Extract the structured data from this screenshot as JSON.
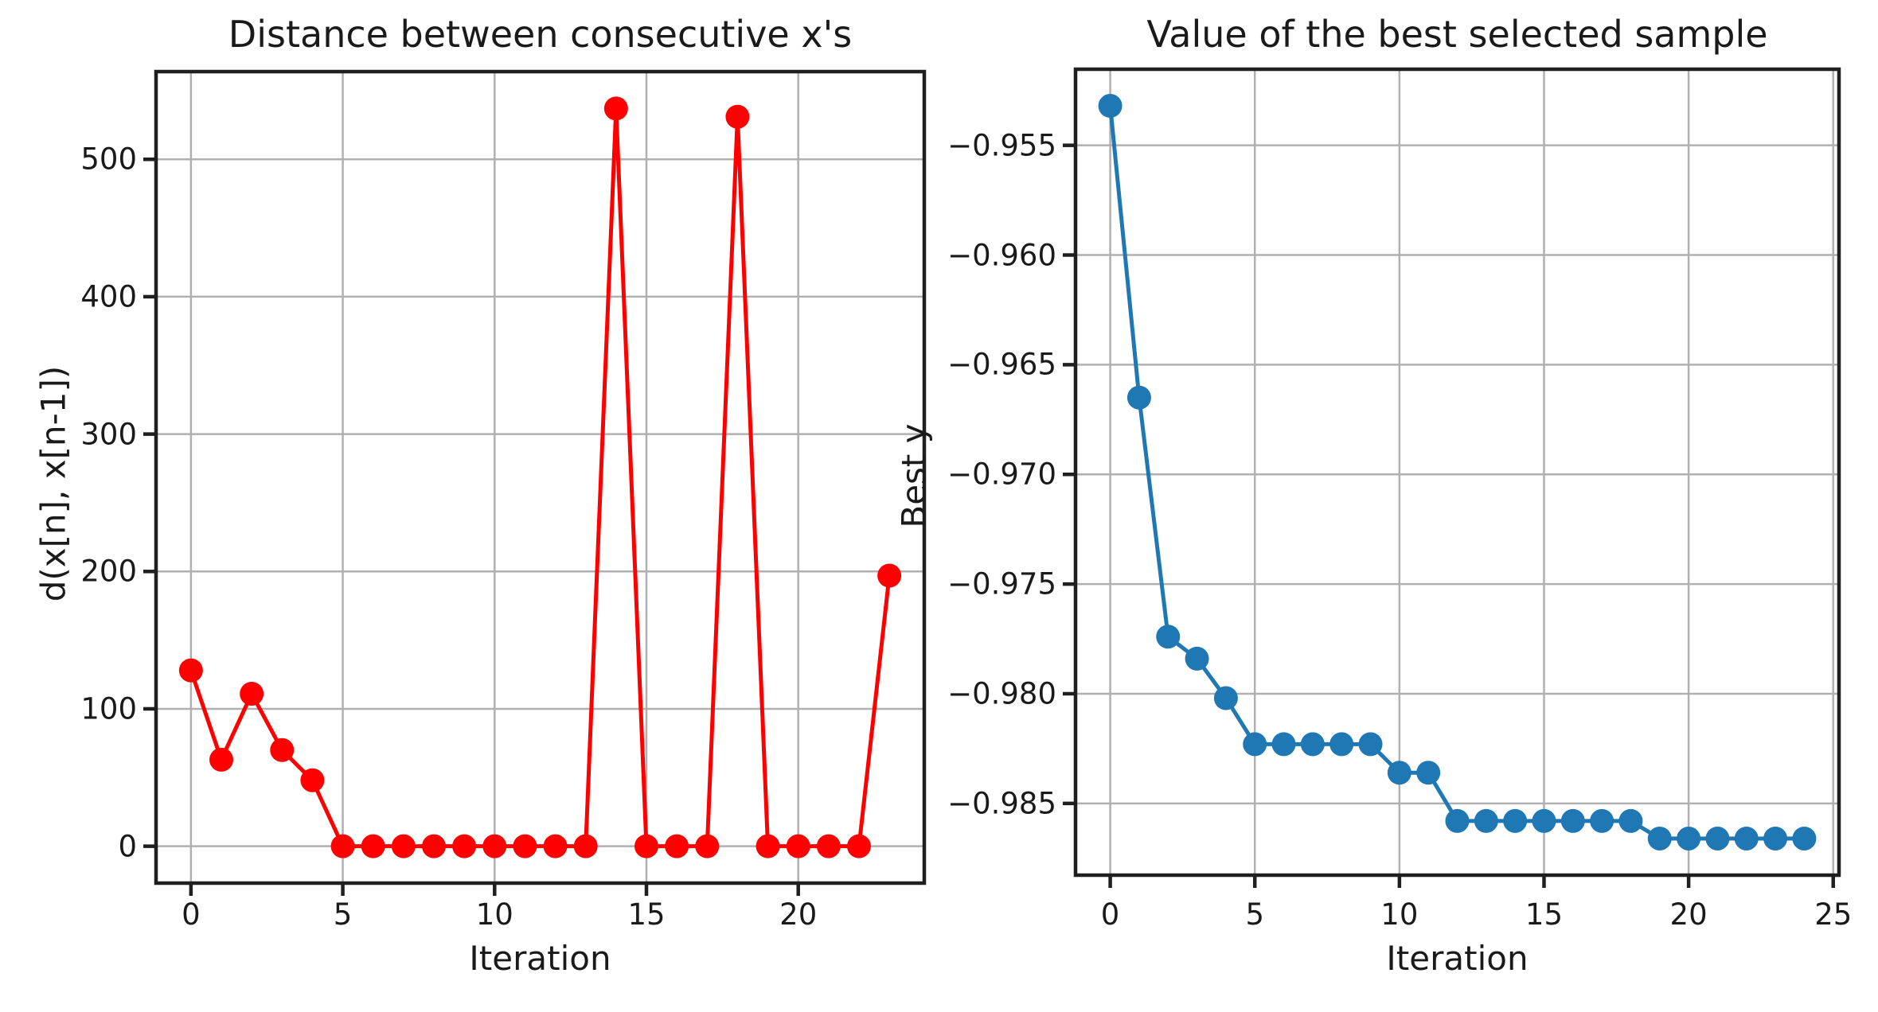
{
  "figure": {
    "background": "#ffffff",
    "text_color": "#1a1a1a",
    "grid_color": "#b0b0b0",
    "spine_color": "#1f1f1f"
  },
  "chart_data": [
    {
      "id": "distance-chart",
      "type": "line",
      "title": "Distance between consecutive x's",
      "xlabel": "Iteration",
      "ylabel": "d(x[n], x[n-1])",
      "line_color": "#ff0000",
      "marker": "circle",
      "grid": true,
      "x": [
        0,
        1,
        2,
        3,
        4,
        5,
        6,
        7,
        8,
        9,
        10,
        11,
        12,
        13,
        14,
        15,
        16,
        17,
        18,
        19,
        20,
        21,
        22,
        23
      ],
      "y": [
        128,
        63,
        111,
        70,
        48,
        0,
        0,
        0,
        0,
        0,
        0,
        0,
        0,
        0,
        537,
        0,
        0,
        0,
        531,
        0,
        0,
        0,
        0,
        197
      ],
      "xlim": [
        -1.15,
        24.15
      ],
      "ylim": [
        -26.85,
        563.85
      ],
      "xticks": {
        "values": [
          0,
          5,
          10,
          15,
          20
        ],
        "labels": [
          "0",
          "5",
          "10",
          "15",
          "20"
        ]
      },
      "yticks": {
        "values": [
          0,
          100,
          200,
          300,
          400,
          500
        ],
        "labels": [
          "0",
          "100",
          "200",
          "300",
          "400",
          "500"
        ]
      }
    },
    {
      "id": "best-sample-chart",
      "type": "line",
      "title": "Value of the best selected sample",
      "xlabel": "Iteration",
      "ylabel": "Best y",
      "line_color": "#1f77b4",
      "marker": "circle",
      "grid": true,
      "x": [
        0,
        1,
        2,
        3,
        4,
        5,
        6,
        7,
        8,
        9,
        10,
        11,
        12,
        13,
        14,
        15,
        16,
        17,
        18,
        19,
        20,
        21,
        22,
        23,
        24
      ],
      "y": [
        -0.9532,
        -0.9665,
        -0.9774,
        -0.9784,
        -0.9802,
        -0.9823,
        -0.9823,
        -0.9823,
        -0.9823,
        -0.9823,
        -0.9836,
        -0.9836,
        -0.9858,
        -0.9858,
        -0.9858,
        -0.9858,
        -0.9858,
        -0.9858,
        -0.9858,
        -0.9866,
        -0.9866,
        -0.9866,
        -0.9866,
        -0.9866,
        -0.9866
      ],
      "xlim": [
        -1.2,
        25.2
      ],
      "ylim": [
        -0.98827,
        -0.95153
      ],
      "xticks": {
        "values": [
          0,
          5,
          10,
          15,
          20,
          25
        ],
        "labels": [
          "0",
          "5",
          "10",
          "15",
          "20",
          "25"
        ]
      },
      "yticks": {
        "values": [
          -0.955,
          -0.96,
          -0.965,
          -0.97,
          -0.975,
          -0.98,
          -0.985
        ],
        "labels": [
          "−0.955",
          "−0.960",
          "−0.965",
          "−0.970",
          "−0.975",
          "−0.980",
          "−0.985"
        ]
      }
    }
  ]
}
